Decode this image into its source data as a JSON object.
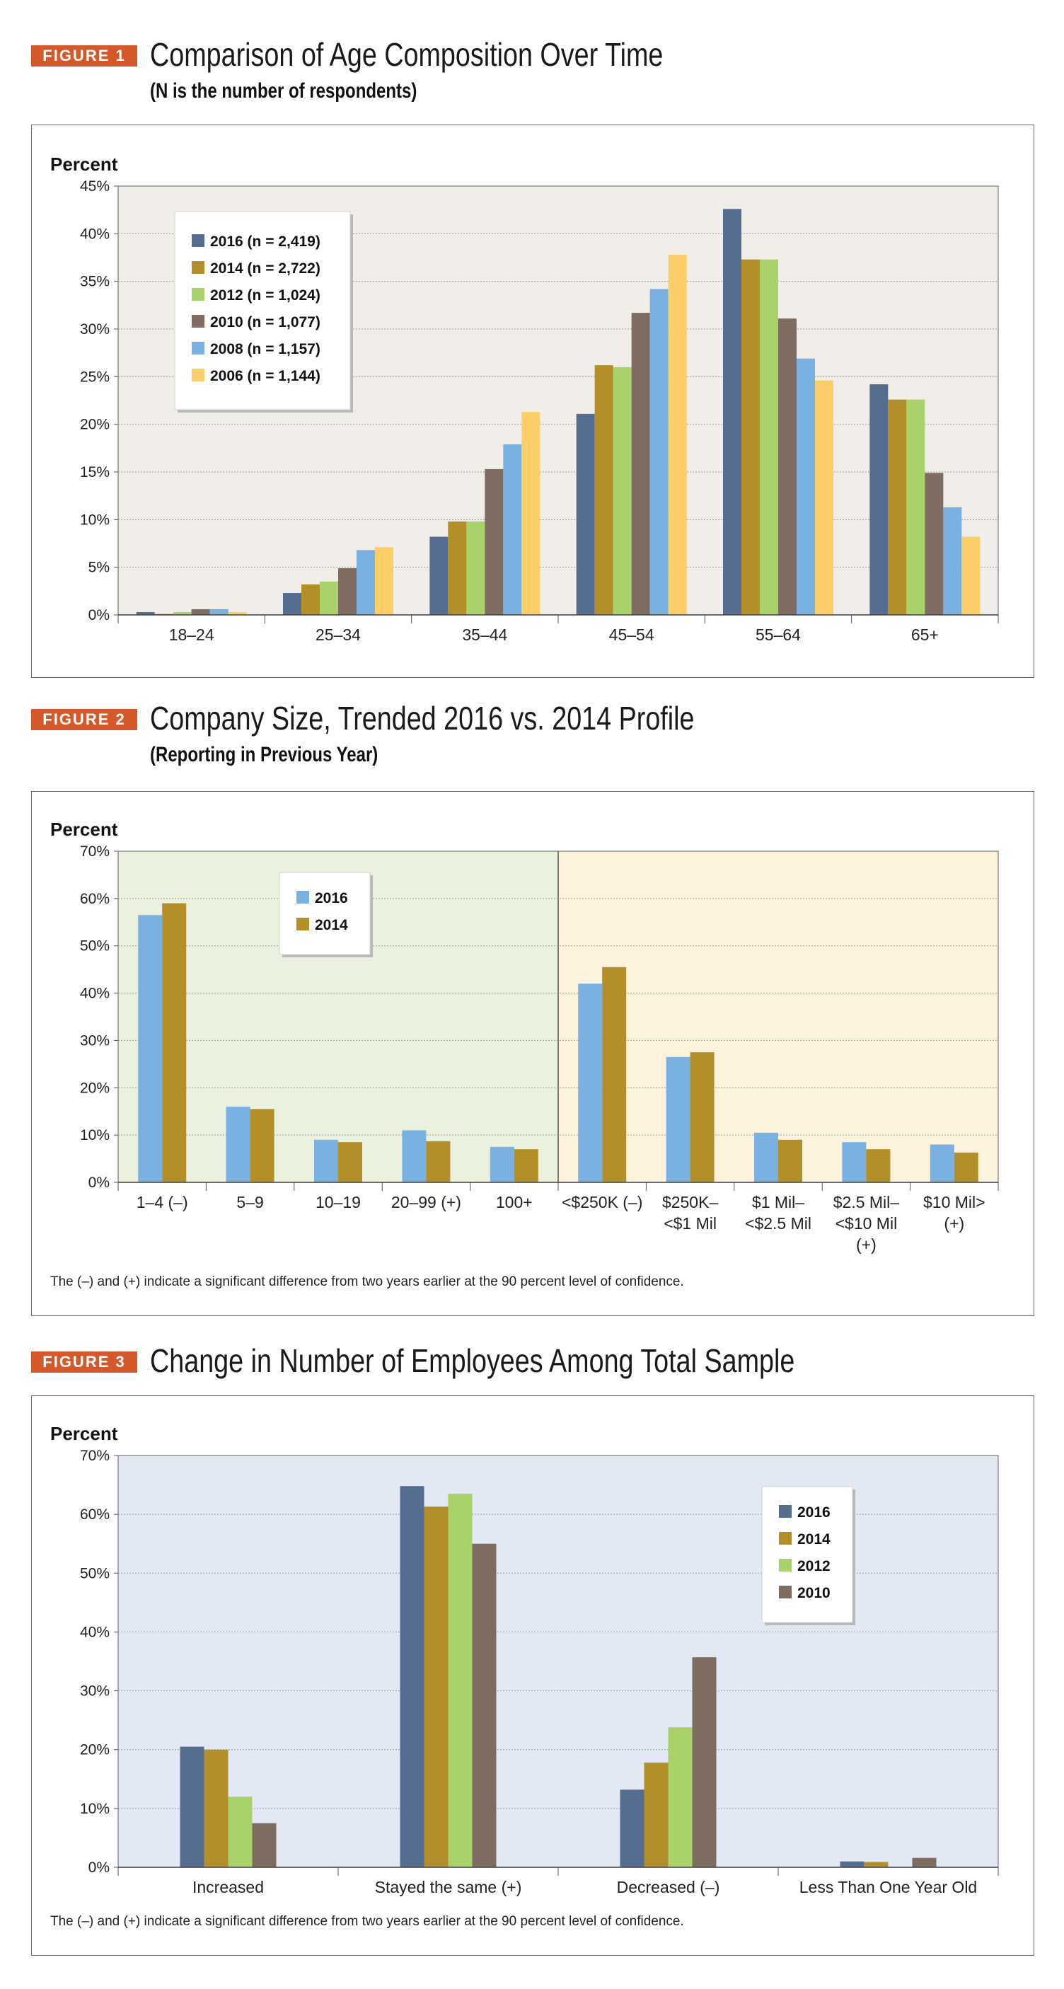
{
  "figures": [
    {
      "tag": "FIGURE 1",
      "title": "Comparison of Age Composition Over Time",
      "subtitle": "(N is the number of respondents)"
    },
    {
      "tag": "FIGURE 2",
      "title": "Company Size, Trended 2016 vs. 2014 Profile",
      "subtitle": "(Reporting in Previous Year)",
      "note": "The (–) and (+) indicate a significant difference from two years earlier at the 90 percent level of confidence."
    },
    {
      "tag": "FIGURE 3",
      "title": "Change in Number of Employees Among Total Sample",
      "note": "The (–) and (+) indicate a significant difference from two years earlier at the 90 percent level of confidence."
    }
  ],
  "chart_data": [
    {
      "type": "bar",
      "title": "Comparison of Age Composition Over Time",
      "ylabel": "Percent",
      "ylim": [
        0,
        45
      ],
      "yticks": [
        "0%",
        "5%",
        "10%",
        "15%",
        "20%",
        "25%",
        "30%",
        "35%",
        "40%",
        "45%"
      ],
      "grid": true,
      "legend_position": "top-left",
      "background": "#f1eee9",
      "categories": [
        "18–24",
        "25–34",
        "35–44",
        "45–54",
        "55–64",
        "65+"
      ],
      "series": [
        {
          "name": "2016 (n = 2,419)",
          "color": "#546d91",
          "values": [
            0.3,
            2.3,
            8.2,
            21.1,
            42.6,
            24.2
          ]
        },
        {
          "name": "2014 (n = 2,722)",
          "color": "#b28f29",
          "values": [
            0.1,
            3.2,
            9.8,
            26.2,
            37.3,
            22.6
          ]
        },
        {
          "name": "2012 (n = 1,024)",
          "color": "#a9d36a",
          "values": [
            0.3,
            3.5,
            9.8,
            26.0,
            37.3,
            22.6
          ]
        },
        {
          "name": "2010 (n = 1,077)",
          "color": "#7d6c5f",
          "values": [
            0.6,
            4.9,
            15.3,
            31.7,
            31.1,
            14.9
          ]
        },
        {
          "name": "2008 (n = 1,157)",
          "color": "#7ab1e0",
          "values": [
            0.6,
            6.8,
            17.9,
            34.2,
            26.9,
            11.3
          ]
        },
        {
          "name": "2006 (n = 1,144)",
          "color": "#fbce69",
          "values": [
            0.3,
            7.1,
            21.3,
            37.8,
            24.6,
            8.2
          ]
        }
      ]
    },
    {
      "type": "bar",
      "title": "Company Size, Trended 2016 vs. 2014 Profile",
      "ylabel": "Percent",
      "ylim": [
        0,
        70
      ],
      "yticks": [
        "0%",
        "10%",
        "20%",
        "30%",
        "40%",
        "50%",
        "60%",
        "70%"
      ],
      "grid": true,
      "legend_position": "top-center-left",
      "region_colors": [
        "#eaf1de",
        "#fdf2dc"
      ],
      "categories": [
        "1–4 (–)",
        "5–9",
        "10–19",
        "20–99 (+)",
        "100+",
        "<$250K (–)",
        "$250K–\n<$1 Mil",
        "$1 Mil–\n<$2.5 Mil",
        "$2.5 Mil–\n<$10 Mil\n(+)",
        "$10 Mil>\n(+)"
      ],
      "series": [
        {
          "name": "2016",
          "color": "#7ab1e0",
          "values": [
            56.5,
            16.0,
            9.0,
            11.0,
            7.5,
            42.0,
            26.5,
            10.5,
            8.5,
            8.0
          ]
        },
        {
          "name": "2014",
          "color": "#b28f29",
          "values": [
            59.0,
            15.5,
            8.5,
            8.7,
            7.0,
            45.5,
            27.5,
            9.0,
            7.0,
            6.3
          ]
        }
      ]
    },
    {
      "type": "bar",
      "title": "Change in Number of Employees Among Total Sample",
      "ylabel": "Percent",
      "ylim": [
        0,
        70
      ],
      "yticks": [
        "0%",
        "10%",
        "20%",
        "30%",
        "40%",
        "50%",
        "60%",
        "70%"
      ],
      "grid": true,
      "legend_position": "top-right",
      "background": "#e2e8f4",
      "categories": [
        "Increased",
        "Stayed the same (+)",
        "Decreased (–)",
        "Less Than One Year Old"
      ],
      "series": [
        {
          "name": "2016",
          "color": "#546d91",
          "values": [
            20.5,
            64.8,
            13.2,
            1.0
          ]
        },
        {
          "name": "2014",
          "color": "#b28f29",
          "values": [
            20.0,
            61.3,
            17.8,
            0.9
          ]
        },
        {
          "name": "2012",
          "color": "#a9d36a",
          "values": [
            12.0,
            63.5,
            23.8,
            0.0
          ]
        },
        {
          "name": "2010",
          "color": "#7d6c5f",
          "values": [
            7.5,
            55.0,
            35.7,
            1.6
          ]
        }
      ]
    }
  ]
}
